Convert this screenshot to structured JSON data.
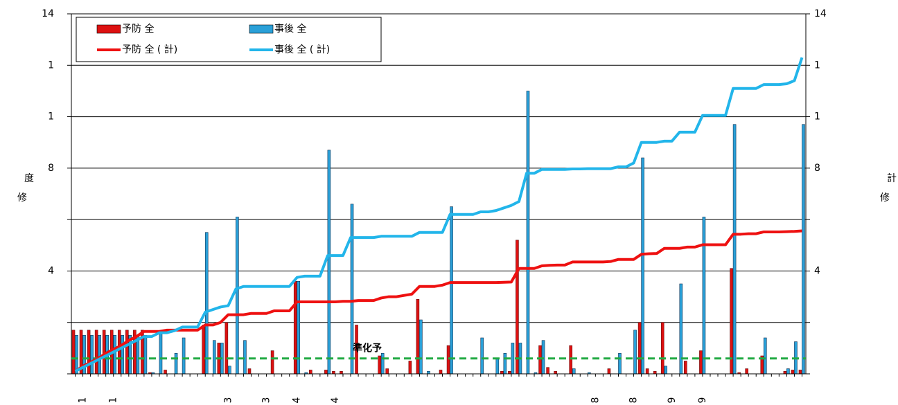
{
  "chart_data": {
    "type": "bar",
    "categories": [
      null,
      "1",
      null,
      null,
      null,
      "1",
      null,
      null,
      null,
      null,
      null,
      null,
      null,
      null,
      null,
      null,
      null,
      null,
      null,
      null,
      "3",
      null,
      null,
      null,
      null,
      "3",
      null,
      null,
      null,
      "4",
      null,
      null,
      null,
      null,
      "4",
      null,
      null,
      null,
      null,
      null,
      null,
      null,
      null,
      null,
      null,
      null,
      null,
      null,
      null,
      null,
      null,
      null,
      null,
      null,
      null,
      null,
      null,
      null,
      null,
      null,
      null,
      null,
      null,
      null,
      null,
      null,
      null,
      null,
      "8",
      null,
      null,
      null,
      null,
      "8",
      null,
      null,
      null,
      null,
      "9",
      null,
      null,
      null,
      "9",
      null,
      null,
      null,
      null,
      null,
      null,
      null,
      null,
      null,
      null,
      null,
      null,
      null
    ],
    "series": [
      {
        "name": "予防 全",
        "type": "bar",
        "color": "#dd1111",
        "values": [
          1.7,
          1.7,
          1.7,
          1.7,
          1.7,
          1.7,
          1.7,
          1.7,
          1.7,
          1.7,
          0.05,
          0,
          0.15,
          0,
          0,
          0,
          0,
          1.9,
          0,
          1.2,
          2.0,
          0,
          0,
          0.2,
          0,
          0,
          0.9,
          0,
          0,
          3.6,
          0,
          0.15,
          0,
          0.15,
          0.1,
          0.1,
          0,
          1.9,
          0,
          0,
          0.7,
          0.2,
          0,
          0,
          0.5,
          2.9,
          0,
          0,
          0.15,
          1.1,
          0,
          0,
          0,
          0,
          0,
          0,
          0.1,
          0.1,
          5.2,
          0,
          0,
          1.1,
          0.25,
          0.1,
          0,
          1.1,
          0,
          0,
          0,
          0,
          0.2,
          0,
          0,
          0,
          2.0,
          0.2,
          0.1,
          2.0,
          0,
          0,
          0.5,
          0,
          0.9,
          0,
          0,
          0,
          4.1,
          0.05,
          0.2,
          0,
          0.7,
          0,
          0,
          0.1,
          0.15,
          0.15
        ]
      },
      {
        "name": "事後 全",
        "type": "bar",
        "color": "#2aa0d8",
        "values": [
          1.5,
          1.5,
          1.5,
          1.5,
          1.5,
          1.5,
          1.5,
          1.5,
          1.5,
          1.5,
          0.05,
          1.6,
          0,
          0.8,
          1.4,
          0,
          0,
          5.5,
          1.3,
          1.2,
          0.3,
          6.1,
          1.3,
          0,
          0,
          0,
          0,
          0,
          0,
          3.6,
          0.05,
          0,
          0,
          8.7,
          0,
          0,
          6.6,
          0,
          0,
          0,
          0.8,
          0,
          0,
          0,
          0,
          2.1,
          0.1,
          0,
          0,
          6.5,
          0,
          0,
          0,
          1.4,
          0,
          0.6,
          0.8,
          1.2,
          1.2,
          11.0,
          0.05,
          1.3,
          0,
          0,
          0,
          0.2,
          0,
          0.05,
          0,
          0,
          0,
          0.8,
          0,
          1.7,
          8.4,
          0,
          0,
          0.3,
          0,
          3.5,
          0,
          0,
          6.1,
          0,
          0,
          0,
          9.7,
          0,
          0,
          0,
          1.4,
          0,
          0,
          0.2,
          1.25,
          9.7
        ]
      },
      {
        "name": "予防 全 ( 計)",
        "type": "line",
        "color": "#ee1111",
        "values": [
          0.1,
          0.3,
          0.45,
          0.6,
          0.8,
          0.95,
          1.1,
          1.3,
          1.45,
          1.65,
          1.65,
          1.65,
          1.7,
          1.7,
          1.7,
          1.7,
          1.7,
          1.9,
          1.9,
          2.0,
          2.3,
          2.3,
          2.3,
          2.35,
          2.35,
          2.35,
          2.45,
          2.45,
          2.45,
          2.8,
          2.8,
          2.8,
          2.8,
          2.8,
          2.8,
          2.82,
          2.82,
          2.85,
          2.85,
          2.85,
          2.95,
          3.0,
          3.0,
          3.05,
          3.1,
          3.4,
          3.4,
          3.4,
          3.45,
          3.55,
          3.55,
          3.55,
          3.55,
          3.55,
          3.55,
          3.55,
          3.56,
          3.57,
          4.1,
          4.1,
          4.1,
          4.2,
          4.22,
          4.23,
          4.23,
          4.35,
          4.35,
          4.35,
          4.35,
          4.35,
          4.37,
          4.45,
          4.45,
          4.45,
          4.65,
          4.67,
          4.68,
          4.88,
          4.88,
          4.88,
          4.93,
          4.93,
          5.02,
          5.02,
          5.02,
          5.02,
          5.43,
          5.43,
          5.45,
          5.45,
          5.52,
          5.52,
          5.52,
          5.53,
          5.54,
          5.56
        ]
      },
      {
        "name": "事後 全 ( 計)",
        "type": "line",
        "color": "#22b5ea",
        "values": [
          0.1,
          0.25,
          0.4,
          0.55,
          0.7,
          0.85,
          1.0,
          1.15,
          1.3,
          1.45,
          1.45,
          1.6,
          1.6,
          1.68,
          1.82,
          1.82,
          1.82,
          2.4,
          2.5,
          2.6,
          2.65,
          3.3,
          3.4,
          3.4,
          3.4,
          3.4,
          3.4,
          3.4,
          3.4,
          3.75,
          3.8,
          3.8,
          3.8,
          4.6,
          4.6,
          4.6,
          5.3,
          5.3,
          5.3,
          5.3,
          5.35,
          5.35,
          5.35,
          5.35,
          5.35,
          5.5,
          5.5,
          5.5,
          5.5,
          6.2,
          6.2,
          6.2,
          6.2,
          6.3,
          6.3,
          6.35,
          6.45,
          6.55,
          6.7,
          7.8,
          7.8,
          7.95,
          7.95,
          7.95,
          7.95,
          7.97,
          7.97,
          7.98,
          7.98,
          7.98,
          7.98,
          8.05,
          8.05,
          8.2,
          9.0,
          9.0,
          9.0,
          9.05,
          9.05,
          9.4,
          9.4,
          9.4,
          10.05,
          10.05,
          10.05,
          10.05,
          11.1,
          11.1,
          11.1,
          11.1,
          11.25,
          11.25,
          11.25,
          11.28,
          11.4,
          12.3
        ]
      }
    ],
    "ylabel": [
      "度",
      "修"
    ],
    "y2label": [
      "計",
      "修"
    ],
    "ylim": [
      0,
      14
    ],
    "yticks": [
      {
        "value": 0,
        "label": null
      },
      {
        "value": 2,
        "label": null
      },
      4,
      {
        "value": 6,
        "label": null
      },
      8,
      {
        "value": 10,
        "label": "1"
      },
      {
        "value": 12,
        "label": "1"
      },
      14
    ],
    "y2lim": [
      0,
      14
    ],
    "y2ticks": [
      {
        "value": 0,
        "label": null
      },
      {
        "value": 2,
        "label": null
      },
      4,
      {
        "value": 6,
        "label": null
      },
      8,
      {
        "value": 10,
        "label": "1"
      },
      {
        "value": 12,
        "label": "1"
      },
      14
    ],
    "reference": {
      "value": 0.6,
      "label": "準化予",
      "color": "#22aa44"
    },
    "grid": true,
    "legend": "upper left"
  }
}
